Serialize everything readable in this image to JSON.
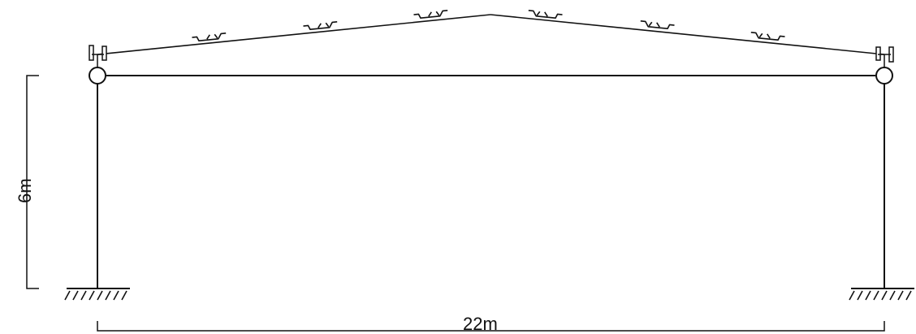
{
  "dimensions": {
    "height_label": "6m",
    "width_label": "22m"
  },
  "frame": {
    "purlin_count": 6,
    "line_color": "#111111",
    "background": "#ffffff"
  }
}
